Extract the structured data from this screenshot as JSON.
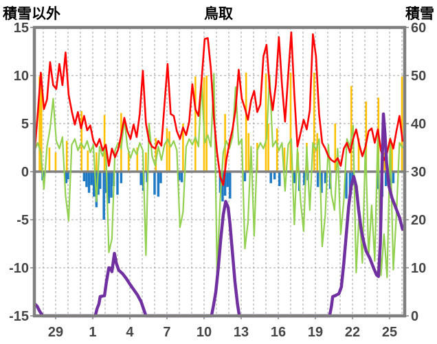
{
  "chart_data": {
    "type": "line",
    "title": "鳥取",
    "left_axis_title": "積雪以外",
    "right_axis_title": "積雪",
    "x_axis": {
      "domain": [
        27.28,
        57.22
      ],
      "gridline_day_start": 28,
      "gridline_day_end": 57,
      "ticks": [
        {
          "t": 29,
          "label": "29"
        },
        {
          "t": 32,
          "label": "1"
        },
        {
          "t": 35,
          "label": "4"
        },
        {
          "t": 38,
          "label": "7"
        },
        {
          "t": 41,
          "label": "10"
        },
        {
          "t": 44,
          "label": "13"
        },
        {
          "t": 47,
          "label": "16"
        },
        {
          "t": 50,
          "label": "19"
        },
        {
          "t": 53,
          "label": "22"
        },
        {
          "t": 56,
          "label": "25"
        }
      ]
    },
    "y_left": {
      "min": -15,
      "max": 15,
      "step": 5,
      "ticks": [
        "15",
        "10",
        "5",
        "0",
        "-5",
        "-10",
        "-15"
      ]
    },
    "y_right": {
      "min": 0,
      "max": 60,
      "step": 10,
      "ticks": [
        "60",
        "50",
        "40",
        "30",
        "20",
        "10",
        "0"
      ]
    },
    "grid": {
      "h_dashed_at": [
        -10,
        -5,
        5,
        10
      ],
      "zero_line_at": 0,
      "grid_on": true,
      "legend": "none"
    },
    "series": [
      {
        "name": "orange-bars",
        "type": "bar",
        "axis": "left",
        "color": "#FFC000",
        "bar_width": 2.6,
        "points": [
          [
            27.7,
            9.9
          ],
          [
            27.85,
            10.2
          ],
          [
            28.5,
            2.5
          ],
          [
            29.0,
            2.0
          ],
          [
            29.9,
            3.2
          ],
          [
            31.1,
            6.3
          ],
          [
            31.6,
            2.2
          ],
          [
            32.3,
            2.0
          ],
          [
            32.95,
            5.9
          ],
          [
            34.3,
            6.1
          ],
          [
            34.9,
            2.0
          ],
          [
            35.6,
            2.5
          ],
          [
            36.3,
            2.0
          ],
          [
            37.1,
            3.5
          ],
          [
            38.0,
            4.5
          ],
          [
            38.2,
            4.2
          ],
          [
            39.3,
            5.0
          ],
          [
            40.3,
            9.9
          ],
          [
            41.0,
            9.8
          ],
          [
            41.2,
            10.0
          ],
          [
            42.7,
            6.0
          ],
          [
            44.4,
            10.3
          ],
          [
            44.6,
            4.0
          ],
          [
            45.3,
            3.0
          ],
          [
            46.0,
            10.2
          ],
          [
            46.2,
            5.0
          ],
          [
            46.9,
            4.5
          ],
          [
            47.5,
            2.5
          ],
          [
            48.0,
            10.3
          ],
          [
            48.6,
            2.0
          ],
          [
            49.3,
            3.0
          ],
          [
            49.9,
            10.3
          ],
          [
            50.15,
            4.0
          ],
          [
            51.6,
            5.0
          ],
          [
            52.9,
            8.9
          ],
          [
            53.5,
            3.5
          ],
          [
            54.1,
            7.3
          ],
          [
            55.1,
            7.7
          ],
          [
            55.6,
            2.0
          ],
          [
            56.2,
            3.0
          ],
          [
            57.0,
            9.9
          ]
        ]
      },
      {
        "name": "blue-bars",
        "type": "bar",
        "axis": "left",
        "color": "#1F7AC5",
        "bar_width": 3.5,
        "points": [
          [
            27.95,
            -0.9
          ],
          [
            28.05,
            -0.6
          ],
          [
            29.85,
            -1.2
          ],
          [
            30.0,
            -0.8
          ],
          [
            31.3,
            -1.0
          ],
          [
            31.5,
            -1.6
          ],
          [
            31.7,
            -2.2
          ],
          [
            31.9,
            -1.4
          ],
          [
            32.1,
            -2.6
          ],
          [
            32.3,
            -3.7
          ],
          [
            32.45,
            -2.4
          ],
          [
            32.6,
            -1.8
          ],
          [
            32.9,
            -5.0
          ],
          [
            33.1,
            -2.2
          ],
          [
            33.3,
            -3.3
          ],
          [
            33.5,
            -2.7
          ],
          [
            33.7,
            -1.5
          ],
          [
            34.0,
            -2.4
          ],
          [
            34.3,
            -1.2
          ],
          [
            35.9,
            -1.4
          ],
          [
            36.1,
            -2.0
          ],
          [
            36.4,
            -1.1
          ],
          [
            37.0,
            -2.4
          ],
          [
            37.3,
            -2.6
          ],
          [
            37.5,
            -1.2
          ],
          [
            39.0,
            -0.9
          ],
          [
            39.2,
            -1.1
          ],
          [
            42.3,
            -2.2
          ],
          [
            42.5,
            -3.1
          ],
          [
            42.7,
            -2.5
          ],
          [
            42.9,
            -1.6
          ],
          [
            43.1,
            -2.8
          ],
          [
            44.3,
            -1.0
          ],
          [
            46.4,
            -1.2
          ],
          [
            46.7,
            -0.8
          ],
          [
            47.1,
            -1.5
          ],
          [
            48.3,
            -1.2
          ],
          [
            48.7,
            -2.0
          ],
          [
            49.1,
            -1.4
          ],
          [
            49.4,
            -0.9
          ],
          [
            50.2,
            -1.6
          ],
          [
            50.5,
            -2.2
          ],
          [
            50.8,
            -1.2
          ],
          [
            51.2,
            -1.8
          ],
          [
            52.5,
            -2.8
          ],
          [
            52.8,
            -2.2
          ],
          [
            53.0,
            -1.4
          ],
          [
            55.1,
            -1.8
          ],
          [
            55.4,
            -2.6
          ],
          [
            55.7,
            -1.5
          ],
          [
            56.0,
            -2.2
          ],
          [
            56.3,
            -1.2
          ]
        ]
      },
      {
        "name": "green-line",
        "type": "line",
        "axis": "left",
        "color": "#92D050",
        "stroke_width": 2.2,
        "t0": 27.3,
        "dt": 0.25,
        "values": [
          2.2,
          3.0,
          2.0,
          -1.8,
          2.6,
          4.5,
          7.6,
          3.2,
          2.4,
          3.6,
          -2.5,
          -5.1,
          2.8,
          3.4,
          2.2,
          3.0,
          2.4,
          3.2,
          2.0,
          2.8,
          -3.1,
          2.6,
          1.6,
          2.8,
          -8.4,
          -7.0,
          2.2,
          3.0,
          2.4,
          5.5,
          2.6,
          1.4,
          2.4,
          1.8,
          3.0,
          2.2,
          -8.7,
          5.0,
          1.6,
          0.6,
          2.6,
          1.2,
          2.8,
          3.4,
          2.6,
          3.2,
          2.2,
          -5.8,
          -4.2,
          2.6,
          3.4,
          2.8,
          3.6,
          2.6,
          9.3,
          3.0,
          3.8,
          2.6,
          10.2,
          -10.5,
          -3.0,
          2.0,
          3.2,
          2.4,
          3.6,
          8.8,
          2.8,
          3.4,
          -8.0,
          -5.3,
          2.6,
          -6.7,
          2.2,
          3.0,
          2.4,
          3.4,
          10.0,
          2.6,
          3.2,
          2.2,
          3.0,
          -2.0,
          2.8,
          3.4,
          -5.5,
          2.4,
          -3.0,
          -6.2,
          2.6,
          -4.0,
          3.0,
          2.2,
          3.4,
          -7.8,
          -4.5,
          2.8,
          -2.4,
          -4.0,
          2.4,
          -6.5,
          -3.0,
          3.4,
          2.6,
          4.8,
          -10.5,
          -4.0,
          -9.5,
          3.0,
          -8.8,
          -3.5,
          -9.3,
          4.0,
          -10.8,
          -6.5,
          -11.0,
          3.5,
          -10.2,
          -4.5,
          3.0,
          2.5
        ]
      },
      {
        "name": "red-line",
        "type": "line",
        "axis": "left",
        "color": "#FF0000",
        "stroke_width": 2.6,
        "t0": 27.3,
        "dt": 0.25,
        "values": [
          2.0,
          6.0,
          10.3,
          6.5,
          7.5,
          11.4,
          9.0,
          8.6,
          11.2,
          9.0,
          12.4,
          8.0,
          6.3,
          4.9,
          6.2,
          4.5,
          5.8,
          4.3,
          4.8,
          3.2,
          2.6,
          3.4,
          2.2,
          2.8,
          0.6,
          2.4,
          1.5,
          2.3,
          3.8,
          5.6,
          4.2,
          3.4,
          4.9,
          3.6,
          6.0,
          10.5,
          5.0,
          3.2,
          2.6,
          2.4,
          3.2,
          2.7,
          7.0,
          11.2,
          6.0,
          5.8,
          4.2,
          3.4,
          4.6,
          3.8,
          5.2,
          9.1,
          6.5,
          5.8,
          9.5,
          13.8,
          13.9,
          10.7,
          5.5,
          2.0,
          -0.5,
          -1.4,
          1.2,
          3.0,
          4.4,
          6.5,
          10.6,
          7.6,
          6.6,
          5.4,
          7.4,
          8.4,
          6.2,
          7.0,
          12.0,
          13.2,
          8.8,
          6.4,
          9.0,
          14.0,
          9.0,
          5.2,
          10.0,
          14.5,
          8.0,
          2.6,
          4.0,
          5.4,
          4.4,
          6.4,
          14.3,
          12.0,
          6.0,
          3.0,
          2.4,
          1.6,
          1.2,
          1.0,
          1.4,
          0.6,
          2.4,
          3.0,
          2.0,
          3.4,
          4.4,
          2.8,
          1.6,
          2.6,
          4.2,
          4.5,
          3.0,
          4.4,
          2.2,
          1.2,
          2.0,
          3.4,
          2.4,
          4.2,
          5.8,
          3.2
        ]
      },
      {
        "name": "purple-snow-line",
        "type": "line",
        "axis": "right",
        "color": "#7030A0",
        "stroke_width": 4.5,
        "points": [
          [
            27.3,
            2.5
          ],
          [
            27.5,
            2.0
          ],
          [
            27.7,
            1.0
          ],
          [
            27.95,
            0
          ],
          [
            32.2,
            0
          ],
          [
            32.35,
            1.5
          ],
          [
            32.5,
            2.5
          ],
          [
            32.6,
            4.0
          ],
          [
            32.95,
            4.2
          ],
          [
            33.1,
            7.0
          ],
          [
            33.3,
            10.0
          ],
          [
            33.45,
            9.9
          ],
          [
            33.55,
            9.2
          ],
          [
            33.75,
            13.0
          ],
          [
            33.9,
            11.0
          ],
          [
            34.1,
            9.5
          ],
          [
            34.4,
            8.8
          ],
          [
            34.7,
            7.8
          ],
          [
            35.0,
            6.6
          ],
          [
            35.3,
            5.5
          ],
          [
            35.6,
            4.4
          ],
          [
            35.9,
            3.0
          ],
          [
            36.1,
            1.5
          ],
          [
            36.3,
            0
          ],
          [
            41.6,
            0
          ],
          [
            41.75,
            2.0
          ],
          [
            41.95,
            5.0
          ],
          [
            42.15,
            10.0
          ],
          [
            42.35,
            16.0
          ],
          [
            42.55,
            21.0
          ],
          [
            42.75,
            23.8
          ],
          [
            42.95,
            22.5
          ],
          [
            43.1,
            19.0
          ],
          [
            43.3,
            13.0
          ],
          [
            43.5,
            7.0
          ],
          [
            43.7,
            2.5
          ],
          [
            43.85,
            0
          ],
          [
            51.15,
            0
          ],
          [
            51.3,
            2.0
          ],
          [
            51.4,
            4.0
          ],
          [
            51.6,
            4.2
          ],
          [
            51.9,
            4.6
          ],
          [
            52.1,
            6.0
          ],
          [
            52.3,
            11.0
          ],
          [
            52.5,
            17.0
          ],
          [
            52.7,
            23.0
          ],
          [
            52.9,
            27.0
          ],
          [
            53.1,
            29.0
          ],
          [
            53.3,
            27.0
          ],
          [
            53.5,
            22.0
          ],
          [
            53.7,
            18.0
          ],
          [
            53.9,
            15.5
          ],
          [
            54.1,
            13.5
          ],
          [
            54.4,
            12.0
          ],
          [
            54.7,
            10.0
          ],
          [
            54.95,
            8.5
          ],
          [
            55.1,
            8.2
          ],
          [
            55.25,
            15.0
          ],
          [
            55.38,
            30.0
          ],
          [
            55.5,
            42.0
          ],
          [
            55.62,
            38.0
          ],
          [
            55.75,
            32.0
          ],
          [
            55.95,
            27.0
          ],
          [
            56.2,
            24.5
          ],
          [
            56.5,
            22.5
          ],
          [
            56.8,
            20.5
          ],
          [
            57.05,
            18.0
          ]
        ]
      }
    ]
  },
  "colors": {
    "grid": "#A0A0A0",
    "border": "#7F7F7F",
    "zero_line": "#7F7F7F",
    "text": "#454545",
    "background": "#FFFFFF"
  }
}
